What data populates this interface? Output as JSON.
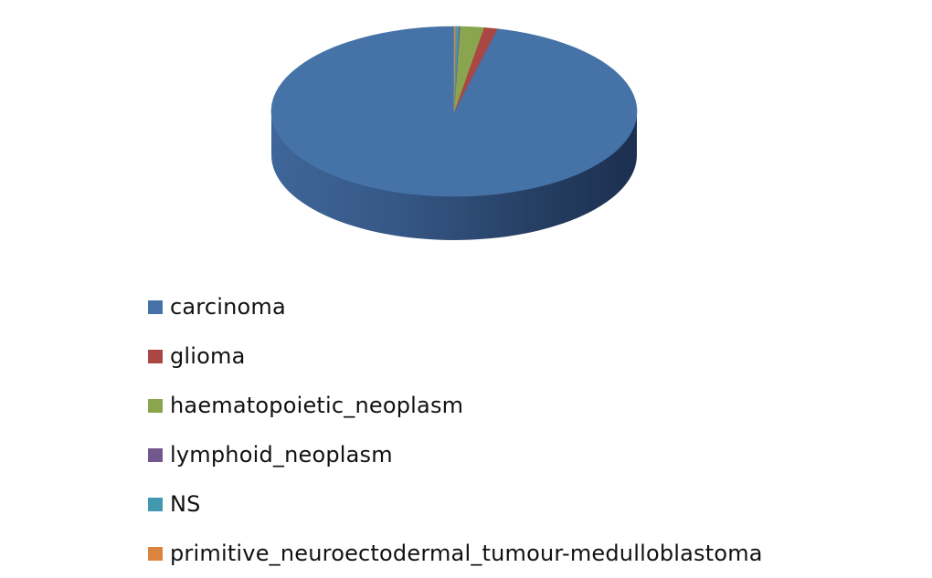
{
  "chart_data": {
    "type": "pie",
    "style": "3d",
    "legend_position": "bottom",
    "labels": [
      "carcinoma",
      "glioma",
      "haematopoietic_neoplasm",
      "lymphoid_neoplasm",
      "NS",
      "primitive_neuroectodermal_tumour-medulloblastoma"
    ],
    "values": [
      96.2,
      1.2,
      2.1,
      0.1,
      0.3,
      0.1
    ],
    "colors": [
      "#4572A7",
      "#AA4643",
      "#89A54E",
      "#71588F",
      "#4198AF",
      "#DB843D"
    ]
  }
}
